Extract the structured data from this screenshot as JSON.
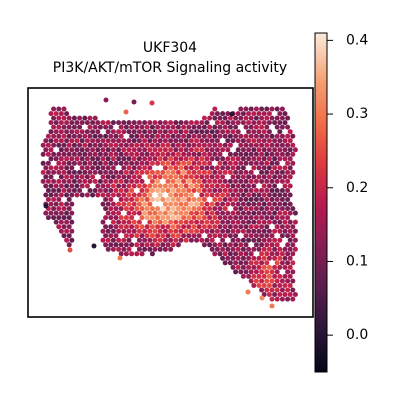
{
  "chart_data": {
    "type": "scatter",
    "title_lines": [
      "UKF304",
      "PI3K/AKT/mTOR Signaling activity"
    ],
    "xlabel": "",
    "ylabel": "",
    "grid": false,
    "colormap": "rocket",
    "colorbar": {
      "range": [
        -0.05,
        0.41
      ],
      "ticks": [
        {
          "value": 0.4,
          "label": "0.4"
        },
        {
          "value": 0.3,
          "label": "0.3"
        },
        {
          "value": 0.2,
          "label": "0.2"
        },
        {
          "value": 0.1,
          "label": "0.1"
        },
        {
          "value": 0.0,
          "label": "0.0"
        }
      ]
    },
    "spots": {
      "description_of_values": "per-spot pathway activity score shown by hexagonal spot colour",
      "value_range": [
        -0.05,
        0.41
      ],
      "low_region_mean": 0.13,
      "high_region_mean": 0.33,
      "note_isolated_low_spots": 5
    }
  }
}
